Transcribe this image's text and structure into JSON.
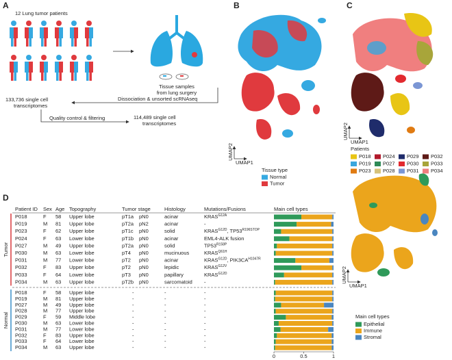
{
  "panels": {
    "a": "A",
    "b": "B",
    "c": "C",
    "d": "D"
  },
  "workflow": {
    "patients": "12 Lung tumor patients",
    "samples": [
      "Tissue samples",
      "from lung surgery"
    ],
    "dissociation": "Dissociation & unsorted scRNAseq",
    "raw": [
      "133,736 single cell",
      "transcriptomes"
    ],
    "qc": "Quality control & filtering",
    "filtered": [
      "114,489 single cell",
      "transcriptomes"
    ]
  },
  "umap": {
    "x": "UMAP1",
    "y": "UMAP2"
  },
  "tissue_legend": {
    "title": "Tissue type",
    "items": [
      {
        "name": "Normal",
        "color": "#35a9e1"
      },
      {
        "name": "Tumor",
        "color": "#e03a3e"
      }
    ]
  },
  "patient_legend": {
    "title": "Patients",
    "items": [
      {
        "name": "P018",
        "color": "#e8c515"
      },
      {
        "name": "P024",
        "color": "#b1192b"
      },
      {
        "name": "P029",
        "color": "#1f2c6b"
      },
      {
        "name": "P032",
        "color": "#5e1a17"
      },
      {
        "name": "P019",
        "color": "#3aa6dd"
      },
      {
        "name": "P027",
        "color": "#2e8b57"
      },
      {
        "name": "P030",
        "color": "#e22a2f"
      },
      {
        "name": "P033",
        "color": "#a8a53a"
      },
      {
        "name": "P023",
        "color": "#e07b12"
      },
      {
        "name": "P028",
        "color": "#d6c27a"
      },
      {
        "name": "P031",
        "color": "#7b96d4"
      },
      {
        "name": "P034",
        "color": "#f07f7f"
      }
    ]
  },
  "table": {
    "headers": [
      "Patient ID",
      "Sex",
      "Age",
      "Topography",
      "Tumor stage",
      "Histology",
      "Mutations/Fusions",
      "Main cell types"
    ],
    "groups": [
      {
        "label": "Tumor",
        "color": "#d9383a",
        "rows": [
          {
            "id": "P018",
            "sex": "F",
            "age": 58,
            "topography": "Upper lobe",
            "stage": [
              "pT1a",
              "pN0"
            ],
            "histology": "acinar",
            "mutations": [
              [
                "KRAS",
                "G12A"
              ]
            ]
          },
          {
            "id": "P019",
            "sex": "M",
            "age": 81,
            "topography": "Upper lobe",
            "stage": [
              "pT2a",
              "pN2"
            ],
            "histology": "acinar",
            "mutations": [
              [
                "-"
              ]
            ]
          },
          {
            "id": "P023",
            "sex": "F",
            "age": 62,
            "topography": "Upper lobe",
            "stage": [
              "pT1c",
              "pN0"
            ],
            "histology": "solid",
            "mutations": [
              [
                "KRAS",
                "G12D"
              ],
              [
                ", TP53",
                "R196STOP"
              ]
            ]
          },
          {
            "id": "P024",
            "sex": "F",
            "age": 63,
            "topography": "Lower lobe",
            "stage": [
              "pT1b",
              "pN0"
            ],
            "histology": "acinar",
            "mutations": [
              [
                "EML4-ALK fusion"
              ]
            ]
          },
          {
            "id": "P027",
            "sex": "M",
            "age": 49,
            "topography": "Upper lobe",
            "stage": [
              "pT2a",
              "pN0"
            ],
            "histology": "solid",
            "mutations": [
              [
                "TP53",
                "R158P"
              ]
            ]
          },
          {
            "id": "P030",
            "sex": "M",
            "age": 63,
            "topography": "Lower lobe",
            "stage": [
              "pT4",
              "pN0"
            ],
            "histology": "mucinuous",
            "mutations": [
              [
                "KRAS",
                "Q61H"
              ]
            ]
          },
          {
            "id": "P031",
            "sex": "M",
            "age": 77,
            "topography": "Lower lobe",
            "stage": [
              "pT2",
              "pN0"
            ],
            "histology": "acinar",
            "mutations": [
              [
                "KRAS",
                "G12D"
              ],
              [
                ", PIK3CA",
                "H1047R"
              ]
            ]
          },
          {
            "id": "P032",
            "sex": "F",
            "age": 83,
            "topography": "Upper lobe",
            "stage": [
              "pT2",
              "pN0"
            ],
            "histology": "lepidic",
            "mutations": [
              [
                "KRAS",
                "G12V"
              ]
            ]
          },
          {
            "id": "P033",
            "sex": "F",
            "age": 64,
            "topography": "Lower lobe",
            "stage": [
              "pT3",
              "pN0"
            ],
            "histology": "papillary",
            "mutations": [
              [
                "KRAS",
                "G12D"
              ]
            ]
          },
          {
            "id": "P034",
            "sex": "M",
            "age": 63,
            "topography": "Upper lobe",
            "stage": [
              "pT2b",
              "pN0"
            ],
            "histology": "sarcomatoid",
            "mutations": [
              [
                "-"
              ]
            ]
          }
        ]
      },
      {
        "label": "Normal",
        "color": "#3a8fc9",
        "rows": [
          {
            "id": "P018",
            "sex": "F",
            "age": 58,
            "topography": "Upper lobe",
            "stage": [
              "-"
            ],
            "histology": "-",
            "mutations": [
              [
                "-"
              ]
            ]
          },
          {
            "id": "P019",
            "sex": "M",
            "age": 81,
            "topography": "Upper lobe",
            "stage": [
              "-"
            ],
            "histology": "-",
            "mutations": [
              [
                "-"
              ]
            ]
          },
          {
            "id": "P027",
            "sex": "M",
            "age": 49,
            "topography": "Upper lobe",
            "stage": [
              "-"
            ],
            "histology": "-",
            "mutations": [
              [
                "-"
              ]
            ]
          },
          {
            "id": "P028",
            "sex": "M",
            "age": 77,
            "topography": "Upper lobe",
            "stage": [
              "-"
            ],
            "histology": "-",
            "mutations": [
              [
                "-"
              ]
            ]
          },
          {
            "id": "P029",
            "sex": "F",
            "age": 59,
            "topography": "Middle lobe",
            "stage": [
              "-"
            ],
            "histology": "-",
            "mutations": [
              [
                "-"
              ]
            ]
          },
          {
            "id": "P030",
            "sex": "M",
            "age": 63,
            "topography": "Lower lobe",
            "stage": [
              "-"
            ],
            "histology": "-",
            "mutations": [
              [
                "-"
              ]
            ]
          },
          {
            "id": "P031",
            "sex": "M",
            "age": 77,
            "topography": "Lower lobe",
            "stage": [
              "-"
            ],
            "histology": "-",
            "mutations": [
              [
                "-"
              ]
            ]
          },
          {
            "id": "P032",
            "sex": "F",
            "age": 83,
            "topography": "Upper lobe",
            "stage": [
              "-"
            ],
            "histology": "-",
            "mutations": [
              [
                "-"
              ]
            ]
          },
          {
            "id": "P033",
            "sex": "F",
            "age": 64,
            "topography": "Lower lobe",
            "stage": [
              "-"
            ],
            "histology": "-",
            "mutations": [
              [
                "-"
              ]
            ]
          },
          {
            "id": "P034",
            "sex": "M",
            "age": 63,
            "topography": "Upper lobe",
            "stage": [
              "-"
            ],
            "histology": "-",
            "mutations": [
              [
                "-"
              ]
            ]
          }
        ]
      }
    ]
  },
  "cell_types": {
    "type": "bar",
    "stacked": true,
    "orientation": "horizontal",
    "title": "Main cell types",
    "xlim": [
      0,
      1
    ],
    "xticks": [
      0,
      0.5,
      1
    ],
    "series": [
      {
        "name": "Epithelial",
        "color": "#2f9a5a",
        "values": [
          0.46,
          0.38,
          0.12,
          0.26,
          0.05,
          0.03,
          0.36,
          0.46,
          0.17,
          0.02,
          0.03,
          0.02,
          0.12,
          0.03,
          0.2,
          0.08,
          0.11,
          0.05,
          0.03,
          0.02
        ]
      },
      {
        "name": "Immune",
        "color": "#eba51c",
        "values": [
          0.52,
          0.58,
          0.86,
          0.72,
          0.93,
          0.95,
          0.57,
          0.52,
          0.81,
          0.96,
          0.95,
          0.96,
          0.72,
          0.95,
          0.77,
          0.9,
          0.8,
          0.92,
          0.94,
          0.95
        ]
      },
      {
        "name": "Stromal",
        "color": "#4a86c0",
        "values": [
          0.02,
          0.04,
          0.02,
          0.02,
          0.02,
          0.02,
          0.07,
          0.02,
          0.02,
          0.02,
          0.02,
          0.02,
          0.16,
          0.02,
          0.03,
          0.02,
          0.09,
          0.03,
          0.03,
          0.03
        ]
      }
    ]
  }
}
